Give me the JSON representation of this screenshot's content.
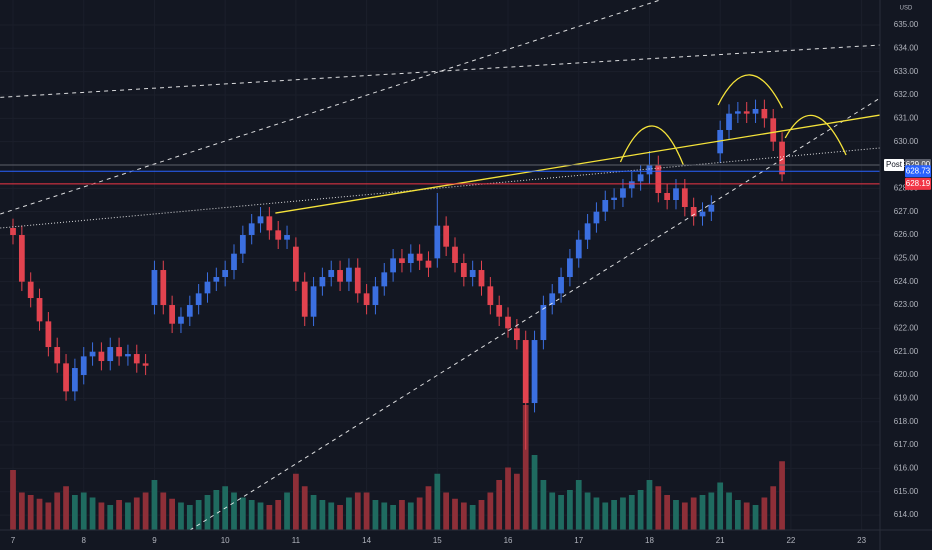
{
  "chart_data": {
    "type": "candlestick",
    "currency": "USD",
    "x": [
      0,
      0.125,
      0.25,
      0.375,
      0.5,
      0.625,
      0.75,
      0.875,
      1,
      1.125,
      1.25,
      1.375,
      1.5,
      1.625,
      1.75,
      1.875,
      2,
      2.125,
      2.25,
      2.375,
      2.5,
      2.625,
      2.75,
      2.875,
      3,
      3.125,
      3.25,
      3.375,
      3.5,
      3.625,
      3.75,
      3.875,
      4,
      4.125,
      4.25,
      4.375,
      4.5,
      4.625,
      4.75,
      4.875,
      5,
      5.125,
      5.25,
      5.375,
      5.5,
      5.625,
      5.75,
      5.875,
      6,
      6.125,
      6.25,
      6.375,
      6.5,
      6.625,
      6.75,
      6.875,
      7,
      7.125,
      7.25,
      7.375,
      7.5,
      7.625,
      7.75,
      7.875,
      8,
      8.125,
      8.25,
      8.375,
      8.5,
      8.625,
      8.75,
      8.875,
      9,
      9.125,
      9.25,
      9.375,
      9.5,
      9.625,
      9.75,
      9.875,
      10,
      10.125,
      10.25,
      10.375,
      10.5,
      10.625,
      10.75,
      10.875
    ],
    "open": [
      626.3,
      626.0,
      624.0,
      623.3,
      622.3,
      621.2,
      620.5,
      619.3,
      620.0,
      620.8,
      621.0,
      620.6,
      621.2,
      620.8,
      620.9,
      620.5,
      623.0,
      624.5,
      623.0,
      622.2,
      622.5,
      623.0,
      623.5,
      624.0,
      624.2,
      624.5,
      625.2,
      626.0,
      626.5,
      626.8,
      626.2,
      625.8,
      625.5,
      624.0,
      622.5,
      623.8,
      624.2,
      624.5,
      624.0,
      624.6,
      623.5,
      623.0,
      623.8,
      624.4,
      625.0,
      624.8,
      625.2,
      624.9,
      625.0,
      626.4,
      625.5,
      624.8,
      624.2,
      624.5,
      623.8,
      623.0,
      622.5,
      622.0,
      621.5,
      618.8,
      621.5,
      623.0,
      623.5,
      624.2,
      625.0,
      625.8,
      626.5,
      627.0,
      627.5,
      627.6,
      628.0,
      628.3,
      628.6,
      629.0,
      627.8,
      627.5,
      628.0,
      627.2,
      626.8,
      627.0,
      629.5,
      630.5,
      631.2,
      631.3,
      631.2,
      631.4,
      631.0,
      630.0
    ],
    "high": [
      626.7,
      626.4,
      624.4,
      623.7,
      622.7,
      621.6,
      620.9,
      620.7,
      621.2,
      621.4,
      621.4,
      621.6,
      621.6,
      621.3,
      621.3,
      620.9,
      624.9,
      624.9,
      623.4,
      622.9,
      623.4,
      623.9,
      624.4,
      624.6,
      624.9,
      625.6,
      626.4,
      626.9,
      627.2,
      627.2,
      626.6,
      626.4,
      625.9,
      624.4,
      624.2,
      624.6,
      624.9,
      624.9,
      625.0,
      625.0,
      623.9,
      624.2,
      624.8,
      625.4,
      625.4,
      625.6,
      625.6,
      625.3,
      627.8,
      626.8,
      625.9,
      625.2,
      624.9,
      624.9,
      624.2,
      623.4,
      622.9,
      622.4,
      621.9,
      621.9,
      623.4,
      623.9,
      624.6,
      625.4,
      626.2,
      626.9,
      627.4,
      627.9,
      628.0,
      628.4,
      628.7,
      629.0,
      629.6,
      629.4,
      628.2,
      628.4,
      628.4,
      627.6,
      627.4,
      627.7,
      630.9,
      631.6,
      631.7,
      631.7,
      631.8,
      631.8,
      631.4,
      630.4
    ],
    "low": [
      625.6,
      623.6,
      622.9,
      621.9,
      620.8,
      620.1,
      618.9,
      618.9,
      619.6,
      620.4,
      620.2,
      620.2,
      620.4,
      620.4,
      620.1,
      620.0,
      622.6,
      622.6,
      621.8,
      621.8,
      622.1,
      622.6,
      623.1,
      623.6,
      623.8,
      624.1,
      624.8,
      625.6,
      626.1,
      625.8,
      625.4,
      625.4,
      623.6,
      622.1,
      622.1,
      623.4,
      623.8,
      623.6,
      623.6,
      623.1,
      622.6,
      622.6,
      623.4,
      624.0,
      624.4,
      624.4,
      624.5,
      624.2,
      624.6,
      625.1,
      624.4,
      623.8,
      623.8,
      623.4,
      622.6,
      622.1,
      621.6,
      621.1,
      616.8,
      618.4,
      621.1,
      622.6,
      623.1,
      623.8,
      624.6,
      625.4,
      626.1,
      626.6,
      627.1,
      627.2,
      627.6,
      627.9,
      628.2,
      627.4,
      627.1,
      627.1,
      626.8,
      626.4,
      626.4,
      626.6,
      629.1,
      630.1,
      630.8,
      630.8,
      630.8,
      630.6,
      629.6,
      628.3
    ],
    "close": [
      626.0,
      624.0,
      623.3,
      622.3,
      621.2,
      620.5,
      619.3,
      620.3,
      620.8,
      621.0,
      620.6,
      621.2,
      620.8,
      620.9,
      620.5,
      620.4,
      624.5,
      623.0,
      622.2,
      622.5,
      623.0,
      623.5,
      624.0,
      624.2,
      624.5,
      625.2,
      626.0,
      626.5,
      626.8,
      626.2,
      625.8,
      626.0,
      624.0,
      622.5,
      623.8,
      624.2,
      624.5,
      624.0,
      624.6,
      623.5,
      623.0,
      623.8,
      624.4,
      625.0,
      624.8,
      625.2,
      624.9,
      624.6,
      626.4,
      625.5,
      624.8,
      624.2,
      624.5,
      623.8,
      623.0,
      622.5,
      622.0,
      621.5,
      618.8,
      621.5,
      623.0,
      623.5,
      624.2,
      625.0,
      625.8,
      626.5,
      627.0,
      627.5,
      627.6,
      628.0,
      628.3,
      628.6,
      629.0,
      627.8,
      627.5,
      628.0,
      627.2,
      626.8,
      627.0,
      627.3,
      630.5,
      631.2,
      631.3,
      631.2,
      631.4,
      631.0,
      630.0,
      628.6
    ],
    "volume": [
      48,
      30,
      28,
      25,
      22,
      30,
      35,
      28,
      30,
      26,
      22,
      20,
      24,
      22,
      26,
      30,
      40,
      30,
      25,
      22,
      20,
      24,
      28,
      32,
      35,
      30,
      26,
      24,
      22,
      20,
      24,
      30,
      45,
      35,
      28,
      24,
      22,
      20,
      26,
      30,
      30,
      24,
      22,
      20,
      24,
      22,
      26,
      35,
      45,
      30,
      25,
      22,
      20,
      24,
      30,
      40,
      50,
      45,
      100,
      60,
      40,
      30,
      28,
      32,
      40,
      30,
      26,
      22,
      24,
      26,
      28,
      32,
      40,
      35,
      28,
      24,
      22,
      26,
      28,
      30,
      38,
      30,
      24,
      22,
      20,
      26,
      35,
      55
    ],
    "up_color": "#3b6fe0",
    "down_color": "#e2434f",
    "volume_up_color": "#1f6b60",
    "volume_down_color": "#8e2f38",
    "xlim": [
      -0.184,
      12.26
    ],
    "ylim": [
      613.36,
      636.07
    ],
    "grid": true,
    "xticks": [
      {
        "value": 0,
        "label": "7"
      },
      {
        "value": 1,
        "label": "8"
      },
      {
        "value": 2,
        "label": "9"
      },
      {
        "value": 3,
        "label": "10"
      },
      {
        "value": 4,
        "label": "11"
      },
      {
        "value": 5,
        "label": "14"
      },
      {
        "value": 6,
        "label": "15"
      },
      {
        "value": 7,
        "label": "16"
      },
      {
        "value": 8,
        "label": "17"
      },
      {
        "value": 9,
        "label": "18"
      },
      {
        "value": 10,
        "label": "21"
      },
      {
        "value": 11,
        "label": "22"
      },
      {
        "value": 12,
        "label": "23"
      }
    ],
    "yticks": [
      {
        "value": 614,
        "label": "614.00"
      },
      {
        "value": 615,
        "label": "615.00"
      },
      {
        "value": 616,
        "label": "616.00"
      },
      {
        "value": 617,
        "label": "617.00"
      },
      {
        "value": 618,
        "label": "618.00"
      },
      {
        "value": 619,
        "label": "619.00"
      },
      {
        "value": 620,
        "label": "620.00"
      },
      {
        "value": 621,
        "label": "621.00"
      },
      {
        "value": 622,
        "label": "622.00"
      },
      {
        "value": 623,
        "label": "623.00"
      },
      {
        "value": 624,
        "label": "624.00"
      },
      {
        "value": 625,
        "label": "625.00"
      },
      {
        "value": 626,
        "label": "626.00"
      },
      {
        "value": 627,
        "label": "627.00"
      },
      {
        "value": 628,
        "label": "628.00"
      },
      {
        "value": 629,
        "label": "629.00"
      },
      {
        "value": 630,
        "label": "630.00"
      },
      {
        "value": 631,
        "label": "631.00"
      },
      {
        "value": 632,
        "label": "632.00"
      },
      {
        "value": 633,
        "label": "633.00"
      },
      {
        "value": 634,
        "label": "634.00"
      },
      {
        "value": 635,
        "label": "635.00"
      }
    ],
    "price_lines": [
      {
        "name": "Post",
        "value": 629,
        "value_label": "629.00",
        "color": "#5d606b"
      },
      {
        "value": 628.73,
        "value_label": "628.73",
        "color": "#2962ff"
      },
      {
        "value": 628.19,
        "value_label": "628.19",
        "color": "#f23645"
      }
    ],
    "drawings": [
      {
        "kind": "dashed",
        "color": "#ffffff",
        "x": [
          -0.18,
          9.15
        ],
        "y": [
          626.9,
          636.07
        ]
      },
      {
        "kind": "dashed",
        "color": "#ffffff",
        "x": [
          -0.18,
          12.26
        ],
        "y": [
          631.9,
          634.14
        ]
      },
      {
        "kind": "dashed",
        "color": "#ffffff",
        "x": [
          2.5,
          12.26
        ],
        "y": [
          613.35,
          631.87
        ]
      },
      {
        "kind": "dotted",
        "color": "#ffffff",
        "x": [
          -0.18,
          12.26
        ],
        "y": [
          626.3,
          629.73
        ]
      },
      {
        "kind": "solid",
        "color": "#f5e33a",
        "x": [
          3.71,
          12.26
        ],
        "y": [
          626.94,
          631.14
        ]
      },
      {
        "kind": "arc",
        "color": "#f5e33a",
        "x": [
          8.59,
          9.04,
          9.48
        ],
        "y": [
          629.13,
          630.67,
          629.0
        ]
      },
      {
        "kind": "arc",
        "color": "#f5e33a",
        "x": [
          9.97,
          10.42,
          10.88
        ],
        "y": [
          631.57,
          632.86,
          631.44
        ]
      },
      {
        "kind": "arc",
        "color": "#f5e33a",
        "x": [
          10.92,
          11.34,
          11.78
        ],
        "y": [
          630.16,
          631.1,
          629.43
        ]
      }
    ]
  }
}
